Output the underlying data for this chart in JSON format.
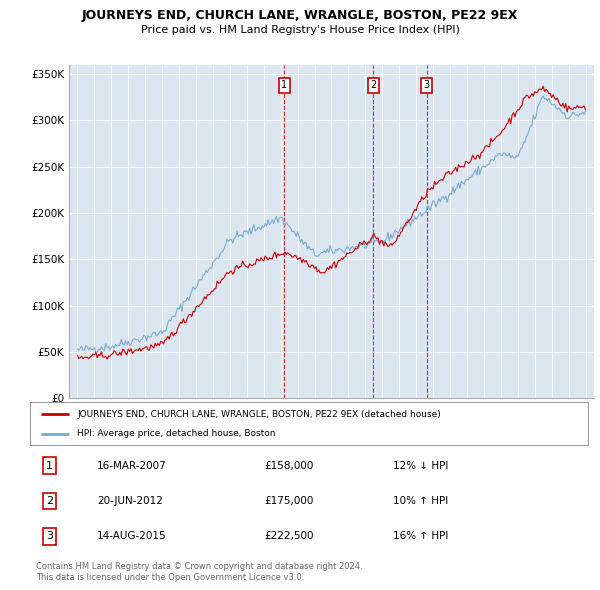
{
  "title": "JOURNEYS END, CHURCH LANE, WRANGLE, BOSTON, PE22 9EX",
  "subtitle": "Price paid vs. HM Land Registry's House Price Index (HPI)",
  "legend_line1": "JOURNEYS END, CHURCH LANE, WRANGLE, BOSTON, PE22 9EX (detached house)",
  "legend_line2": "HPI: Average price, detached house, Boston",
  "sale_color": "#cc0000",
  "hpi_color": "#7aabcc",
  "background_color": "#dce6f1",
  "plot_bg": "#dce6f1",
  "ylim": [
    0,
    360000
  ],
  "yticks": [
    0,
    50000,
    100000,
    150000,
    200000,
    250000,
    300000,
    350000
  ],
  "ytick_labels": [
    "£0",
    "£50K",
    "£100K",
    "£150K",
    "£200K",
    "£250K",
    "£300K",
    "£350K"
  ],
  "sale_dates": [
    2007.21,
    2012.47,
    2015.62
  ],
  "sale_prices": [
    158000,
    175000,
    222500
  ],
  "sale_labels": [
    "1",
    "2",
    "3"
  ],
  "sale_date_strs": [
    "16-MAR-2007",
    "20-JUN-2012",
    "14-AUG-2015"
  ],
  "sale_price_strs": [
    "£158,000",
    "£175,000",
    "£222,500"
  ],
  "sale_hpi_strs": [
    "12% ↓ HPI",
    "10% ↑ HPI",
    "16% ↑ HPI"
  ],
  "xmin": 1994.5,
  "xmax": 2025.5,
  "footnote1": "Contains HM Land Registry data © Crown copyright and database right 2024.",
  "footnote2": "This data is licensed under the Open Government Licence v3.0."
}
